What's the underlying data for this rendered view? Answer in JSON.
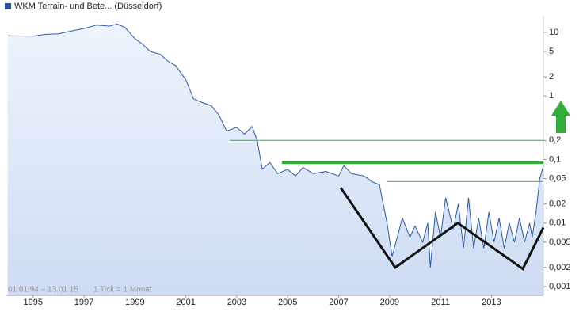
{
  "chart_data": {
    "type": "line",
    "ylog": true,
    "yaxis_side": "right",
    "series": [
      {
        "name": "WKM Terrain- und Bete... (Düsseldorf)",
        "color": "#2a5aa8",
        "fill": "#dfe9f8",
        "x": [
          1994.0,
          1995.0,
          1995.5,
          1996.0,
          1996.5,
          1997.0,
          1997.5,
          1998.0,
          1998.3,
          1998.6,
          1999.0,
          1999.3,
          1999.6,
          2000.0,
          2000.3,
          2000.6,
          2001.0,
          2001.3,
          2001.6,
          2002.0,
          2002.3,
          2002.6,
          2003.0,
          2003.3,
          2003.6,
          2003.8,
          2004.0,
          2004.3,
          2004.6,
          2005.0,
          2005.3,
          2005.6,
          2006.0,
          2006.5,
          2007.0,
          2007.2,
          2007.5,
          2008.0,
          2008.3,
          2008.6,
          2008.9,
          2009.1,
          2009.3,
          2009.5,
          2009.8,
          2010.0,
          2010.3,
          2010.5,
          2010.6,
          2010.8,
          2011.0,
          2011.2,
          2011.5,
          2011.7,
          2011.9,
          2012.1,
          2012.3,
          2012.5,
          2012.7,
          2012.9,
          2013.1,
          2013.3,
          2013.5,
          2013.7,
          2013.9,
          2014.1,
          2014.3,
          2014.5,
          2014.6,
          2014.75,
          2014.9,
          2015.04
        ],
        "values": [
          8.8,
          8.7,
          9.3,
          9.5,
          10.5,
          11.5,
          13,
          12.5,
          13.5,
          12,
          8,
          6.5,
          5,
          4.5,
          3.5,
          3.0,
          1.8,
          0.9,
          0.8,
          0.7,
          0.5,
          0.28,
          0.32,
          0.25,
          0.33,
          0.2,
          0.07,
          0.09,
          0.06,
          0.07,
          0.055,
          0.075,
          0.06,
          0.065,
          0.055,
          0.08,
          0.06,
          0.055,
          0.045,
          0.04,
          0.01,
          0.003,
          0.006,
          0.012,
          0.006,
          0.009,
          0.005,
          0.01,
          0.002,
          0.015,
          0.006,
          0.025,
          0.008,
          0.02,
          0.004,
          0.025,
          0.004,
          0.012,
          0.004,
          0.015,
          0.005,
          0.012,
          0.004,
          0.01,
          0.005,
          0.012,
          0.005,
          0.01,
          0.006,
          0.015,
          0.05,
          0.08
        ]
      }
    ],
    "xlim": [
      1993.95,
      2015.04
    ],
    "xticks": [
      1995,
      1997,
      1999,
      2001,
      2003,
      2005,
      2007,
      2009,
      2011,
      2013
    ],
    "ylim": [
      0.00073,
      18.2
    ],
    "yticks": [
      10,
      5,
      2,
      1,
      {
        "value": 0.2,
        "label": "0,2"
      },
      {
        "value": 0.1,
        "label": "0,1"
      },
      {
        "value": 0.05,
        "label": "0,05"
      },
      {
        "value": 0.02,
        "label": "0,02"
      },
      {
        "value": 0.01,
        "label": "0,01"
      },
      {
        "value": 0.005,
        "label": "0,005"
      },
      {
        "value": 0.002,
        "label": "0,002"
      },
      {
        "value": 0.001,
        "label": "0,001"
      }
    ],
    "reference_lines": [
      {
        "value": 0.2,
        "from": 2002.72,
        "color": "#3cb043",
        "width": 1
      },
      {
        "value": 0.09,
        "from": 2004.77,
        "color": "#2fae3a",
        "width": 4
      },
      {
        "value": 0.045,
        "from": 2008.88,
        "color": "#3cb043",
        "width": 1
      }
    ],
    "pattern": {
      "color": "#111111",
      "x": [
        2007.08,
        2009.22,
        2011.68,
        2014.23,
        2015.04
      ],
      "values": [
        0.036,
        0.002,
        0.01,
        0.0019,
        0.0085
      ]
    },
    "annotations": [
      "01.01.94 – 13.01.15",
      "1 Tick = 1 Monat"
    ]
  }
}
